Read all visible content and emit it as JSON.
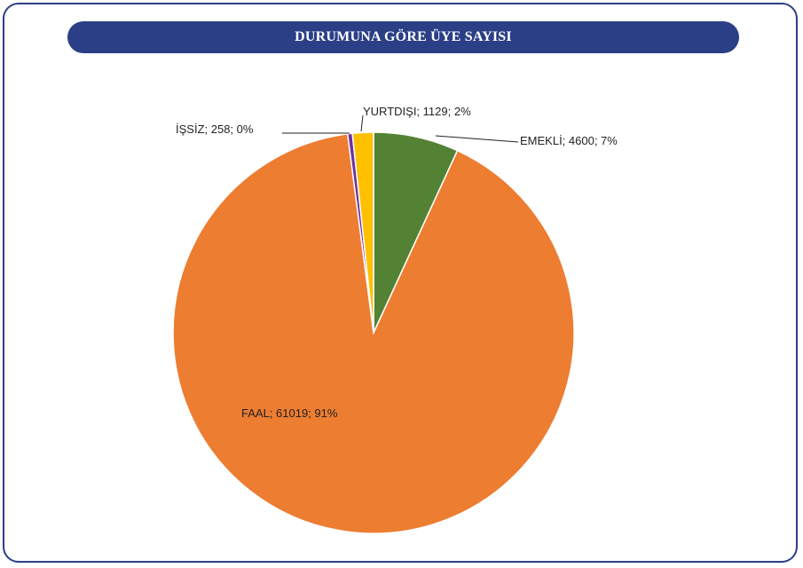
{
  "title": "DURUMUNA GÖRE ÜYE SAYISI",
  "chart_data": {
    "type": "pie",
    "title": "DURUMUNA GÖRE ÜYE SAYISI",
    "slices": [
      {
        "name": "EMEKLİ",
        "value": 4600,
        "percent": "7%",
        "label": "EMEKLİ; 4600; 7%",
        "color": "#548235"
      },
      {
        "name": "FAAL",
        "value": 61019,
        "percent": "91%",
        "label": "FAAL; 61019; 91%",
        "color": "#ed7d31"
      },
      {
        "name": "İŞSİZ",
        "value": 258,
        "percent": "0%",
        "label": "İŞSİZ; 258; 0%",
        "color": "#7030a0"
      },
      {
        "name": "YURTDIŞI",
        "value": 1129,
        "percent": "2%",
        "label": "YURTDIŞI; 1129; 2%",
        "color": "#ffc000"
      }
    ]
  },
  "colors": {
    "frame": "#2b3f86",
    "title_bar": "#2b3f86",
    "title_text": "#ffffff"
  }
}
